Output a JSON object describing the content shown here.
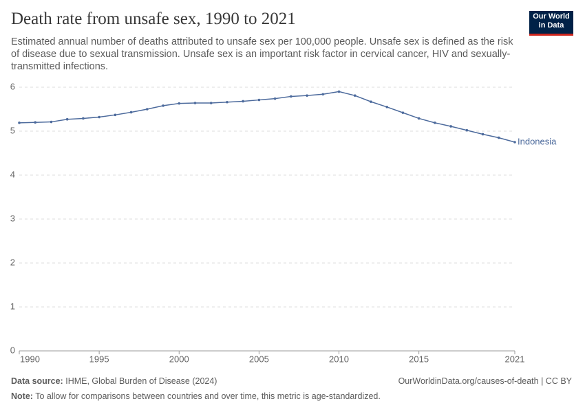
{
  "chart_data": {
    "type": "line",
    "title": "Death rate from unsafe sex, 1990 to 2021",
    "subtitle": "Estimated annual number of deaths attributed to unsafe sex per 100,000 people. Unsafe sex is defined as the risk of disease due to sexual transmission. Unsafe sex is an important risk factor in cervical cancer, HIV and sexually-transmitted infections.",
    "logo": [
      "Our World",
      "in Data"
    ],
    "x": [
      1990,
      1991,
      1992,
      1993,
      1994,
      1995,
      1996,
      1997,
      1998,
      1999,
      2000,
      2001,
      2002,
      2003,
      2004,
      2005,
      2006,
      2007,
      2008,
      2009,
      2010,
      2011,
      2012,
      2013,
      2014,
      2015,
      2016,
      2017,
      2018,
      2019,
      2020,
      2021
    ],
    "series": [
      {
        "name": "Indonesia",
        "color": "#4c6a9c",
        "values": [
          5.19,
          5.2,
          5.21,
          5.27,
          5.29,
          5.32,
          5.37,
          5.43,
          5.5,
          5.58,
          5.63,
          5.64,
          5.64,
          5.66,
          5.68,
          5.71,
          5.74,
          5.79,
          5.81,
          5.84,
          5.9,
          5.81,
          5.67,
          5.55,
          5.42,
          5.29,
          5.19,
          5.11,
          5.02,
          4.93,
          4.85,
          4.75
        ]
      }
    ],
    "xlim": [
      1990,
      2021
    ],
    "xticks": [
      1990,
      1995,
      2000,
      2005,
      2010,
      2015,
      2021
    ],
    "ylim": [
      0,
      6
    ],
    "yticks": [
      0,
      1,
      2,
      3,
      4,
      5,
      6
    ],
    "grid": true,
    "source_label": "Data source:",
    "source": "IHME, Global Burden of Disease (2024)",
    "credit": "OurWorldinData.org/causes-of-death | CC BY",
    "note_label": "Note:",
    "note": "To allow for comparisons between countries and over time, this metric is age-standardized."
  }
}
